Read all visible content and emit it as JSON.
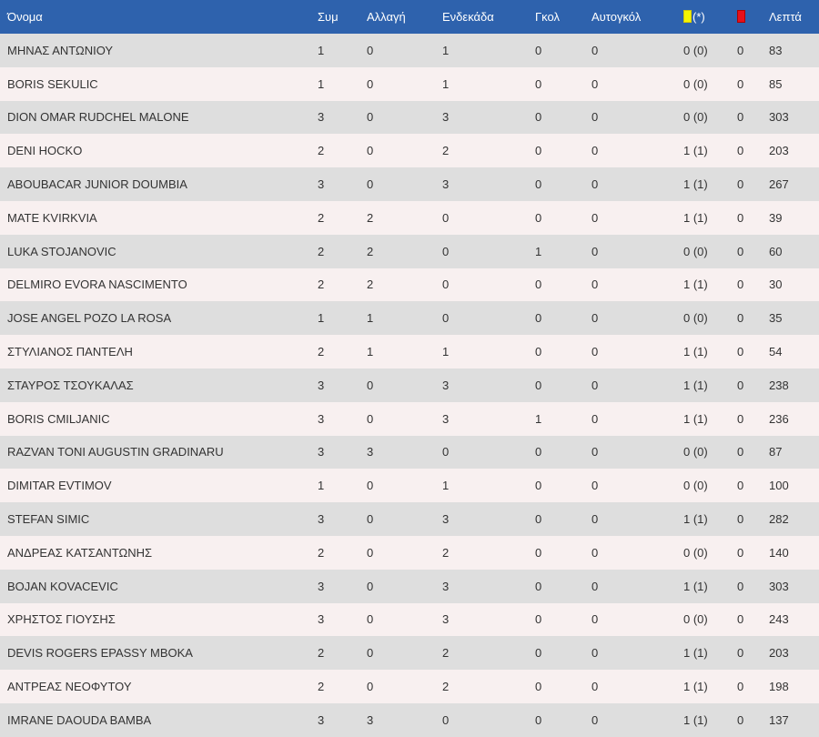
{
  "header": {
    "name": "Όνομα",
    "apps": "Συμ",
    "sub": "Αλλαγή",
    "start": "Ενδεκάδα",
    "goals": "Γκολ",
    "own_goals": "Αυτογκόλ",
    "yellow_suffix": "(*)",
    "minutes": "Λεπτά"
  },
  "colors": {
    "header_bg": "#2e62ad",
    "row_odd": "#dedede",
    "row_even": "#f8f0f0",
    "yellow_card": "#f5f500",
    "red_card": "#e8101a"
  },
  "rows": [
    {
      "name": "ΜΗΝΑΣ ΑΝΤΩΝΙΟΥ",
      "apps": "1",
      "sub": "0",
      "start": "1",
      "goals": "0",
      "own": "0",
      "yellow": "0 (0)",
      "red": "0",
      "min": "83"
    },
    {
      "name": "BORIS SEKULIC",
      "apps": "1",
      "sub": "0",
      "start": "1",
      "goals": "0",
      "own": "0",
      "yellow": "0 (0)",
      "red": "0",
      "min": "85"
    },
    {
      "name": "DION OMAR RUDCHEL MALONE",
      "apps": "3",
      "sub": "0",
      "start": "3",
      "goals": "0",
      "own": "0",
      "yellow": "0 (0)",
      "red": "0",
      "min": "303"
    },
    {
      "name": "DENI HOCKO",
      "apps": "2",
      "sub": "0",
      "start": "2",
      "goals": "0",
      "own": "0",
      "yellow": "1 (1)",
      "red": "0",
      "min": "203"
    },
    {
      "name": "ABOUBACAR JUNIOR DOUMBIA",
      "apps": "3",
      "sub": "0",
      "start": "3",
      "goals": "0",
      "own": "0",
      "yellow": "1 (1)",
      "red": "0",
      "min": "267"
    },
    {
      "name": "MATE KVIRKVIA",
      "apps": "2",
      "sub": "2",
      "start": "0",
      "goals": "0",
      "own": "0",
      "yellow": "1 (1)",
      "red": "0",
      "min": "39"
    },
    {
      "name": "LUKA STOJANOVIC",
      "apps": "2",
      "sub": "2",
      "start": "0",
      "goals": "1",
      "own": "0",
      "yellow": "0 (0)",
      "red": "0",
      "min": "60"
    },
    {
      "name": "DELMIRO EVORA NASCIMENTO",
      "apps": "2",
      "sub": "2",
      "start": "0",
      "goals": "0",
      "own": "0",
      "yellow": "1 (1)",
      "red": "0",
      "min": "30"
    },
    {
      "name": "JOSE ANGEL POZO LA ROSA",
      "apps": "1",
      "sub": "1",
      "start": "0",
      "goals": "0",
      "own": "0",
      "yellow": "0 (0)",
      "red": "0",
      "min": "35"
    },
    {
      "name": "ΣΤΥΛΙΑΝΟΣ ΠΑΝΤΕΛΗ",
      "apps": "2",
      "sub": "1",
      "start": "1",
      "goals": "0",
      "own": "0",
      "yellow": "1 (1)",
      "red": "0",
      "min": "54"
    },
    {
      "name": "ΣΤΑΥΡΟΣ ΤΣΟΥΚΑΛΑΣ",
      "apps": "3",
      "sub": "0",
      "start": "3",
      "goals": "0",
      "own": "0",
      "yellow": "1 (1)",
      "red": "0",
      "min": "238"
    },
    {
      "name": "BORIS CMILJANIC",
      "apps": "3",
      "sub": "0",
      "start": "3",
      "goals": "1",
      "own": "0",
      "yellow": "1 (1)",
      "red": "0",
      "min": "236"
    },
    {
      "name": "RAZVAN TONI AUGUSTIN GRADINARU",
      "apps": "3",
      "sub": "3",
      "start": "0",
      "goals": "0",
      "own": "0",
      "yellow": "0 (0)",
      "red": "0",
      "min": "87"
    },
    {
      "name": "DIMITAR EVTIMOV",
      "apps": "1",
      "sub": "0",
      "start": "1",
      "goals": "0",
      "own": "0",
      "yellow": "0 (0)",
      "red": "0",
      "min": "100"
    },
    {
      "name": "STEFAN SIMIC",
      "apps": "3",
      "sub": "0",
      "start": "3",
      "goals": "0",
      "own": "0",
      "yellow": "1 (1)",
      "red": "0",
      "min": "282"
    },
    {
      "name": "ΑΝΔΡΕΑΣ ΚΑΤΣΑΝΤΩΝΗΣ",
      "apps": "2",
      "sub": "0",
      "start": "2",
      "goals": "0",
      "own": "0",
      "yellow": "0 (0)",
      "red": "0",
      "min": "140"
    },
    {
      "name": "BOJAN KOVACEVIC",
      "apps": "3",
      "sub": "0",
      "start": "3",
      "goals": "0",
      "own": "0",
      "yellow": "1 (1)",
      "red": "0",
      "min": "303"
    },
    {
      "name": "ΧΡΗΣΤΟΣ ΓΙΟΥΣΗΣ",
      "apps": "3",
      "sub": "0",
      "start": "3",
      "goals": "0",
      "own": "0",
      "yellow": "0 (0)",
      "red": "0",
      "min": "243"
    },
    {
      "name": "DEVIS ROGERS EPASSY MBOKA",
      "apps": "2",
      "sub": "0",
      "start": "2",
      "goals": "0",
      "own": "0",
      "yellow": "1 (1)",
      "red": "0",
      "min": "203"
    },
    {
      "name": "ΑΝΤΡΕΑΣ ΝΕΟΦΥΤΟΥ",
      "apps": "2",
      "sub": "0",
      "start": "2",
      "goals": "0",
      "own": "0",
      "yellow": "1 (1)",
      "red": "0",
      "min": "198"
    },
    {
      "name": "IMRANE DAOUDA BAMBA",
      "apps": "3",
      "sub": "3",
      "start": "0",
      "goals": "0",
      "own": "0",
      "yellow": "1 (1)",
      "red": "0",
      "min": "137"
    }
  ]
}
